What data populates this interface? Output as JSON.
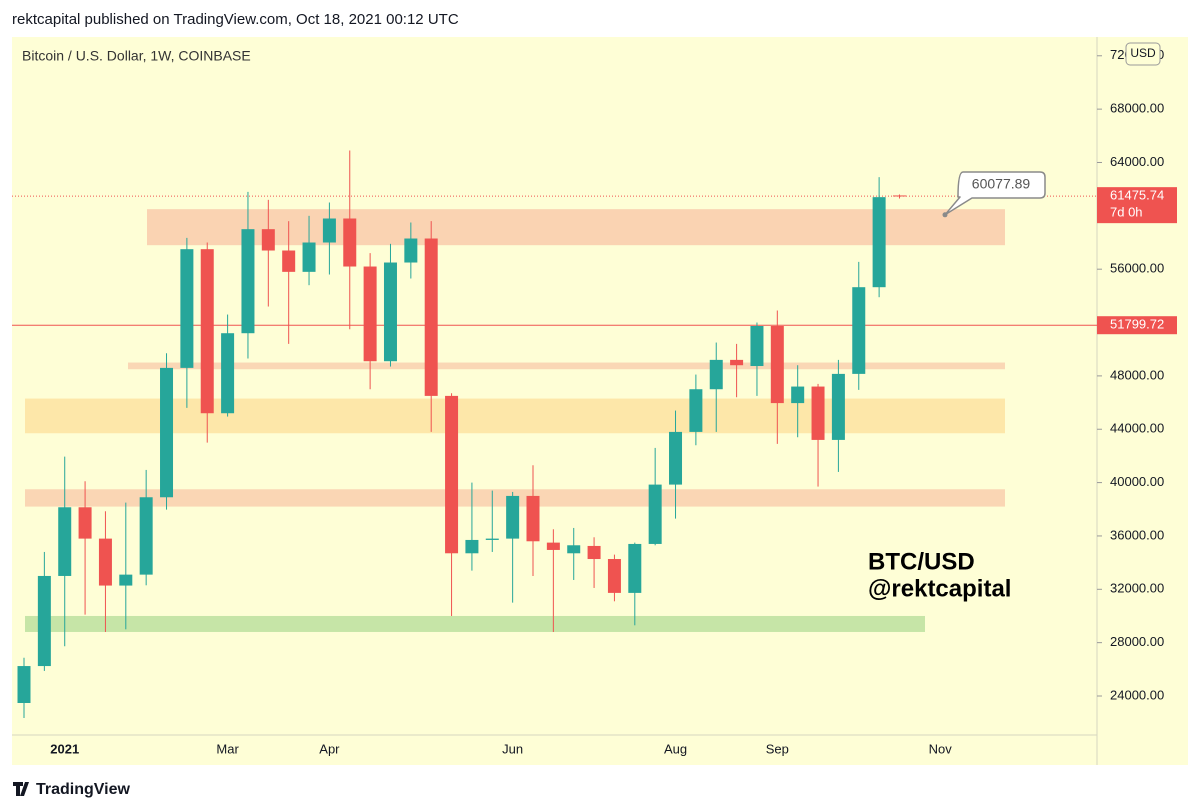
{
  "header": {
    "title": "rektcapital published on TradingView.com, Oct 18, 2021 00:12 UTC"
  },
  "footer": {
    "brand": "TradingView"
  },
  "chart_data": {
    "type": "candlestick",
    "symbol": "Bitcoin / U.S. Dollar, 1W, COINBASE",
    "currency": "USD",
    "watermark": [
      "BTC/USD",
      "@rektcapital"
    ],
    "categories": [
      null,
      null,
      "2021",
      null,
      null,
      null,
      null,
      null,
      null,
      null,
      "Mar",
      null,
      null,
      null,
      null,
      "Apr",
      null,
      null,
      null,
      null,
      null,
      null,
      null,
      null,
      "Jun",
      null,
      null,
      null,
      null,
      null,
      null,
      null,
      "Aug",
      null,
      null,
      null,
      null,
      "Sep",
      null,
      null,
      null,
      null,
      null,
      null,
      null,
      "Nov"
    ],
    "open": [
      23475,
      26245,
      33000,
      38150,
      35800,
      32280,
      33100,
      38900,
      48600,
      57500,
      45200,
      51200,
      59000,
      57400,
      55800,
      58000,
      59800,
      56200,
      49100,
      56500,
      58300,
      46500,
      34700,
      35700,
      35800,
      39000,
      35500,
      34700,
      35250,
      34270,
      31730,
      35400,
      39850,
      43800,
      47000,
      49200,
      48740,
      51740,
      45960,
      47200,
      43200,
      48150,
      54650,
      61528,
      null,
      null
    ],
    "high": [
      26870,
      34800,
      41950,
      40100,
      37850,
      38500,
      40950,
      49700,
      58350,
      58000,
      52600,
      61800,
      61200,
      59600,
      60000,
      61000,
      64900,
      57200,
      57900,
      59500,
      59600,
      46700,
      40000,
      39400,
      39300,
      41300,
      36500,
      36600,
      35900,
      34600,
      35500,
      42600,
      45400,
      48100,
      50500,
      50400,
      52000,
      52900,
      48800,
      47400,
      49200,
      56550,
      62900,
      61600,
      null,
      null
    ],
    "low": [
      22350,
      25880,
      27730,
      30100,
      28800,
      29000,
      32300,
      37970,
      45600,
      43000,
      44950,
      49300,
      53200,
      50400,
      54800,
      55600,
      51500,
      47000,
      48700,
      55300,
      43800,
      30000,
      33400,
      34800,
      31000,
      33000,
      28800,
      32700,
      32100,
      31100,
      29300,
      35300,
      37300,
      42800,
      43800,
      46400,
      46500,
      42900,
      43400,
      39700,
      40800,
      46950,
      53900,
      61300,
      null,
      null
    ],
    "close": [
      26245,
      33000,
      38150,
      35800,
      32280,
      33100,
      38900,
      48600,
      57500,
      45200,
      51200,
      59000,
      57400,
      55800,
      58000,
      59800,
      56200,
      49100,
      56500,
      58300,
      46500,
      34700,
      35700,
      35800,
      39000,
      35600,
      34950,
      35300,
      34270,
      31730,
      35400,
      39850,
      43800,
      47000,
      49200,
      48800,
      51740,
      45960,
      47200,
      43200,
      48150,
      54650,
      61400,
      61475.74,
      null,
      null
    ],
    "up_color": "#26a69a",
    "down_color": "#ef5350",
    "ylim": [
      21076,
      73408
    ],
    "yticks": [
      {
        "value": 24000,
        "label": "24000.00"
      },
      {
        "value": 28000,
        "label": "28000.00"
      },
      {
        "value": 32000,
        "label": "32000.00"
      },
      {
        "value": 36000,
        "label": "36000.00"
      },
      {
        "value": 40000,
        "label": "40000.00"
      },
      {
        "value": 44000,
        "label": "44000.00"
      },
      {
        "value": 48000,
        "label": "48000.00"
      },
      {
        "value": 52000,
        "label": "52000.00"
      },
      {
        "value": 56000,
        "label": "56000.00"
      },
      {
        "value": 60000,
        "label": "60000.00"
      },
      {
        "value": 64000,
        "label": "64000.00"
      },
      {
        "value": 68000,
        "label": "68000.00"
      },
      {
        "value": 72000,
        "label": "72000.00"
      }
    ],
    "grid": false,
    "zones": [
      {
        "low": 57800,
        "high": 60500,
        "color": "#fad3b2"
      },
      {
        "low": 48500,
        "high": 49000,
        "color": "#fad7b5"
      },
      {
        "low": 43700,
        "high": 46300,
        "color": "#fde7a9"
      },
      {
        "low": 38200,
        "high": 39500,
        "color": "#fad6b4"
      },
      {
        "low": 28800,
        "high": 30000,
        "color": "#c6e5a7"
      }
    ],
    "price_lines": [
      {
        "value": 61475.74,
        "style": "dotted",
        "color": "#ef5350",
        "countdown": "7d 0h"
      },
      {
        "value": 51799.72,
        "style": "solid",
        "color": "#ef5350"
      }
    ],
    "annotation": {
      "value": 60077.89
    }
  }
}
